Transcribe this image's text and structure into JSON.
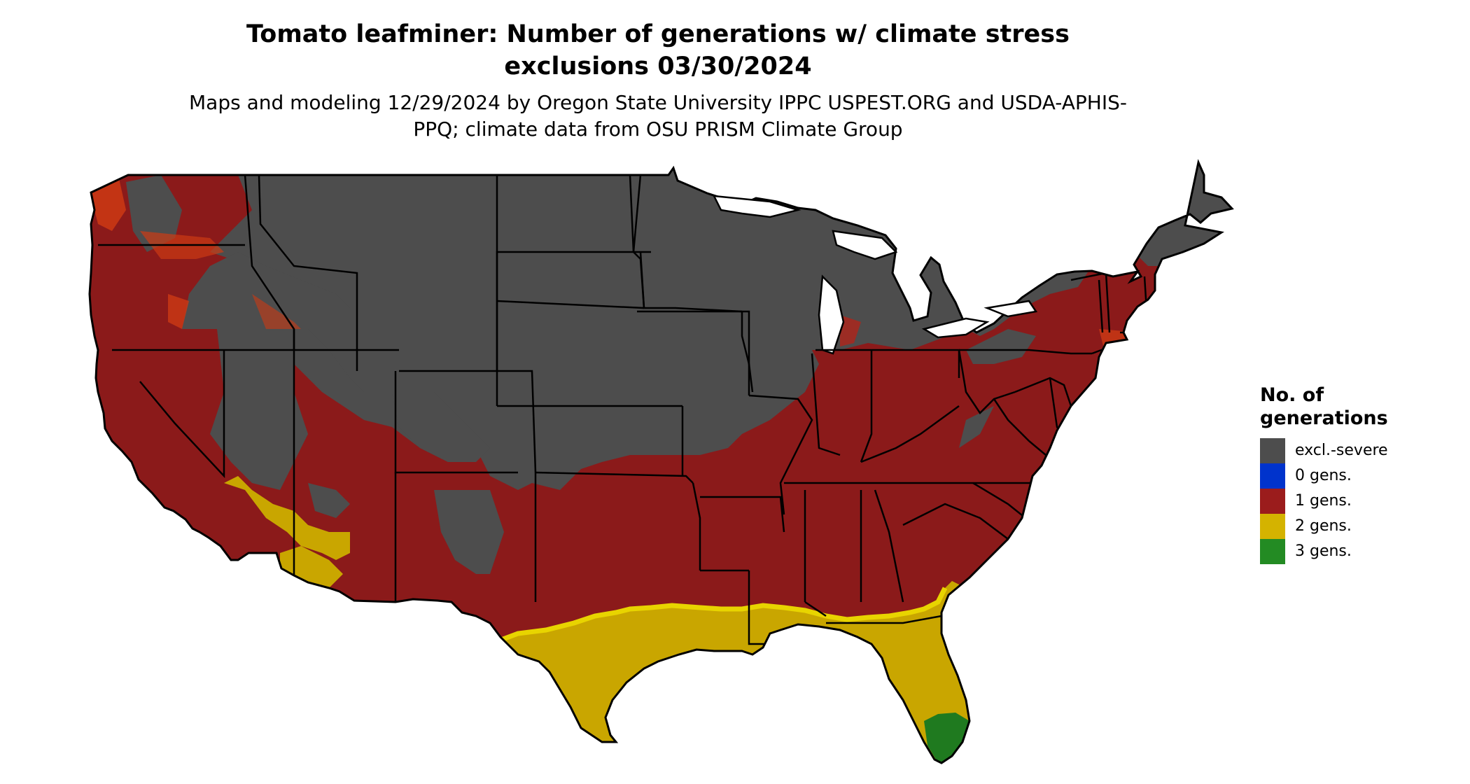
{
  "title": "Tomato leafminer: Number of generations w/ climate stress exclusions 03/30/2024",
  "subtitle": "Maps and modeling 12/29/2024 by Oregon State University IPPC USPEST.ORG and USDA-APHIS-PPQ; climate data from OSU PRISM Climate Group",
  "legend": {
    "title": "No. of generations",
    "items": [
      {
        "label": "excl.-severe",
        "color": "#4d4d4d"
      },
      {
        "label": "0 gens.",
        "color": "#0033cc"
      },
      {
        "label": "1 gens.",
        "color": "#9b1c1c"
      },
      {
        "label": "2 gens.",
        "color": "#d4b300"
      },
      {
        "label": "3 gens.",
        "color": "#238b23"
      }
    ]
  },
  "map": {
    "region": "Contiguous United States",
    "colors": {
      "excluded": "#4d4d4d",
      "zero": "#0033cc",
      "one": "#8b1a1a",
      "one_edge": "#cc3a14",
      "two": "#c9a600",
      "two_edge": "#e8d400",
      "three": "#1f7a1f",
      "border": "#000000"
    }
  }
}
